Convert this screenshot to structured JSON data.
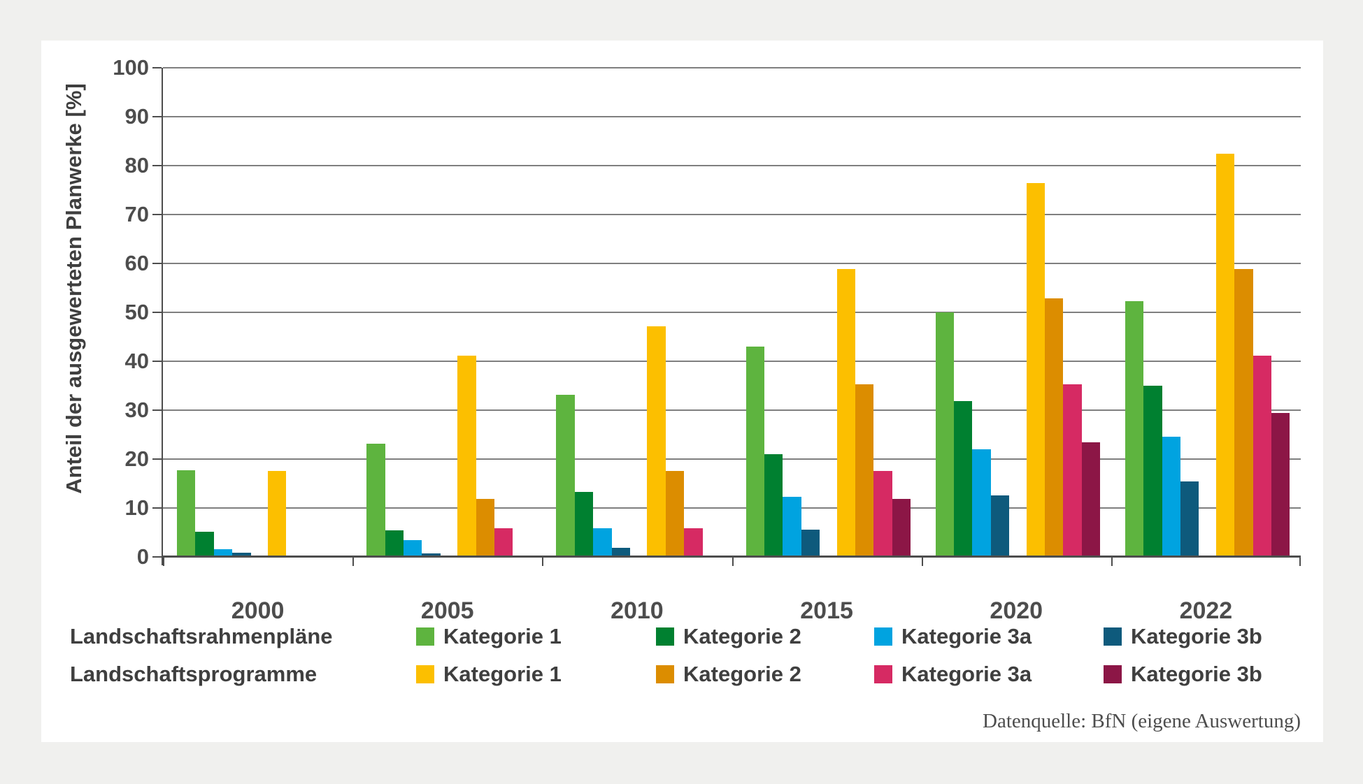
{
  "page": {
    "background_color": "#f0f0ee",
    "panel_color": "#ffffff"
  },
  "legend": {
    "row_labels": [
      "Landschaftsrahmenpläne",
      "Landschaftsprogramme"
    ]
  },
  "source": {
    "text": "Datenquelle: BfN (eigene Auswertung)"
  },
  "chart_data": {
    "type": "bar",
    "categories": [
      "2000",
      "2005",
      "2010",
      "2015",
      "2020",
      "2022"
    ],
    "series": [
      {
        "group": "Landschaftsrahmenpläne",
        "name": "Kategorie 1",
        "color": "#5eb43f",
        "values": [
          17.7,
          23.2,
          33.2,
          43.0,
          50.0,
          52.3
        ]
      },
      {
        "group": "Landschaftsrahmenpläne",
        "name": "Kategorie 2",
        "color": "#008030",
        "values": [
          5.2,
          5.4,
          13.3,
          21.0,
          31.9,
          35.0
        ]
      },
      {
        "group": "Landschaftsrahmenpläne",
        "name": "Kategorie 3a",
        "color": "#00a3e0",
        "values": [
          1.6,
          3.4,
          5.8,
          12.3,
          22.0,
          24.6
        ]
      },
      {
        "group": "Landschaftsrahmenpläne",
        "name": "Kategorie 3b",
        "color": "#0e5a7c",
        "values": [
          0.9,
          0.7,
          1.8,
          5.6,
          12.6,
          15.4
        ]
      },
      {
        "group": "Landschaftsprogramme",
        "name": "Kategorie 1",
        "color": "#fcbf00",
        "values": [
          17.6,
          41.2,
          47.1,
          58.8,
          76.5,
          82.4
        ]
      },
      {
        "group": "Landschaftsprogramme",
        "name": "Kategorie 2",
        "color": "#dc8d00",
        "values": [
          0,
          11.8,
          17.6,
          35.3,
          52.9,
          58.8
        ]
      },
      {
        "group": "Landschaftsprogramme",
        "name": "Kategorie 3a",
        "color": "#d62a63",
        "values": [
          0,
          5.9,
          5.9,
          17.6,
          35.3,
          41.2
        ]
      },
      {
        "group": "Landschaftsprogramme",
        "name": "Kategorie 3b",
        "color": "#8c1646",
        "values": [
          0,
          0,
          0,
          11.8,
          23.5,
          29.4
        ]
      }
    ],
    "title": "",
    "xlabel": "",
    "ylabel": "Anteil der ausgewerteten Planwerke [%]",
    "ylim": [
      0,
      100
    ],
    "ytick_step": 10,
    "ytick_labels": [
      "0",
      "10",
      "20",
      "30",
      "40",
      "50",
      "60",
      "70",
      "80",
      "90",
      "100"
    ],
    "grid": true,
    "legend_position": "bottom",
    "axis_color": "#4d4d4d",
    "gridline_color": "#7f7f7f"
  }
}
